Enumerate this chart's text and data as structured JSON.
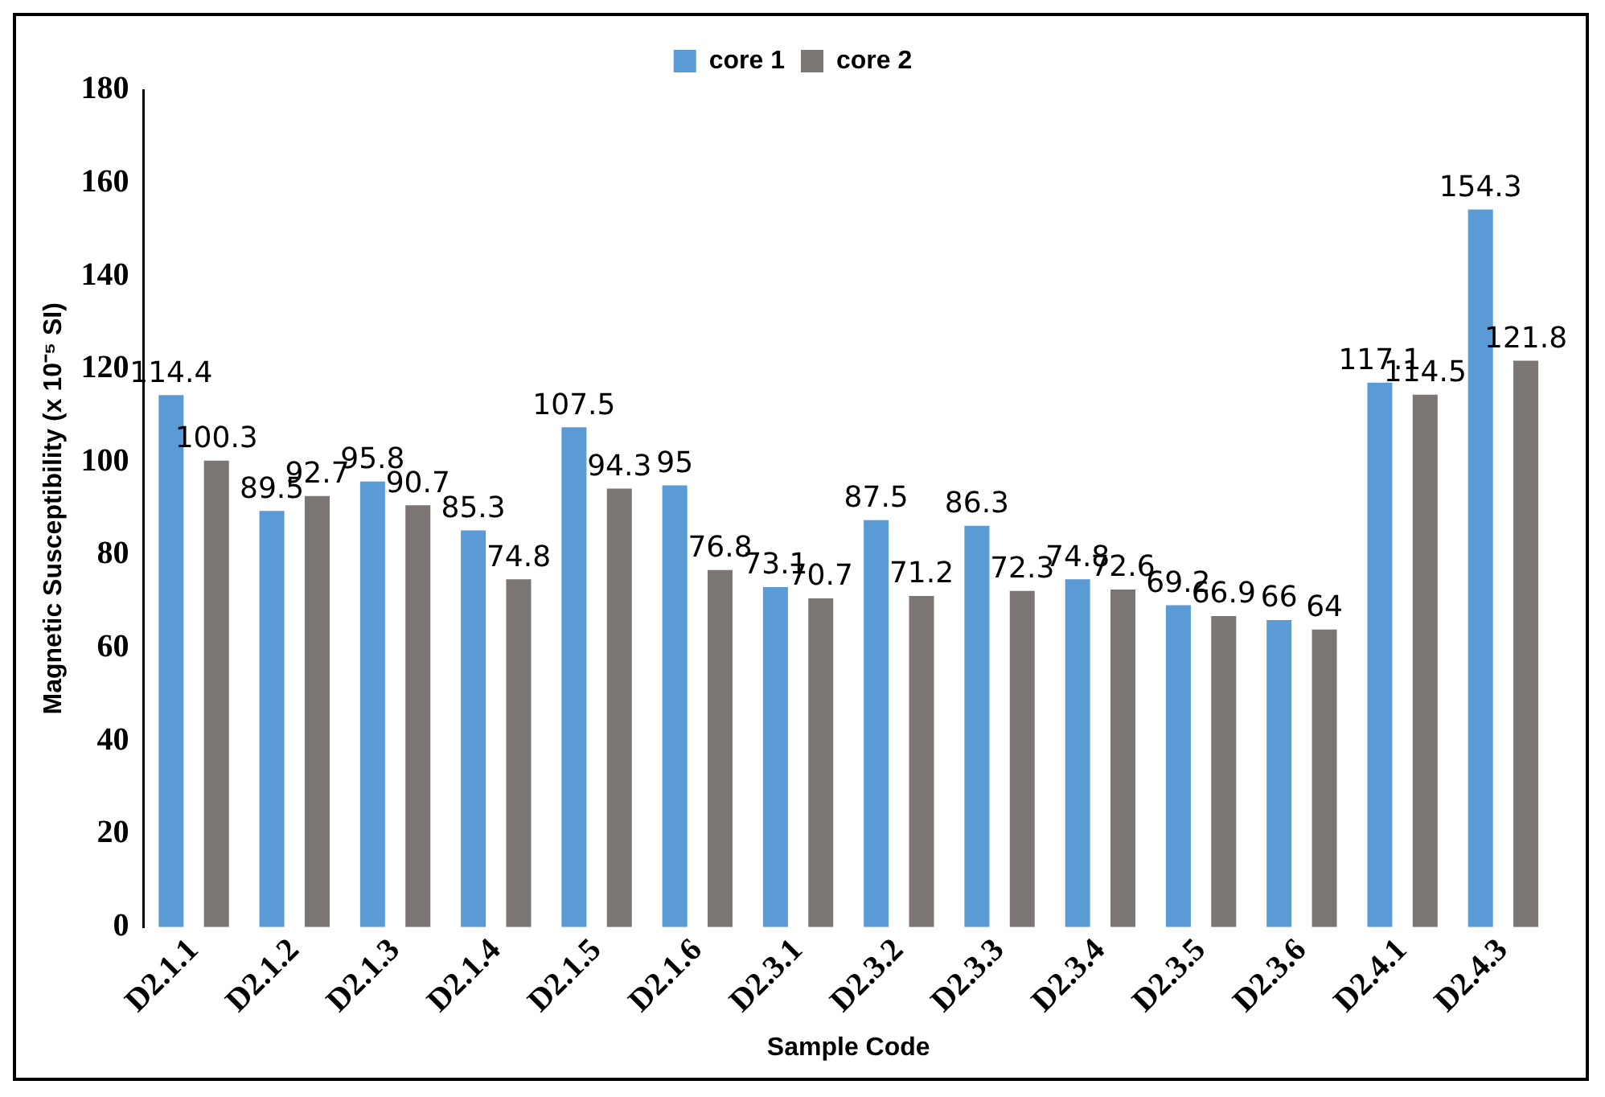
{
  "chart_data": {
    "type": "bar",
    "xlabel": "Sample Code",
    "ylabel": "Magnetic Susceptibility (x 10⁻⁵ SI)",
    "categories": [
      "D2.1.1",
      "D2.1.2",
      "D2.1.3",
      "D2.1.4",
      "D2.1.5",
      "D2.1.6",
      "D2.3.1",
      "D2.3.2",
      "D2.3.3",
      "D2.3.4",
      "D2.3.5",
      "D2.3.6",
      "D2.4.1",
      "D2.4.3"
    ],
    "series": [
      {
        "name": "core 1",
        "color": "#5b9bd5",
        "values": [
          114.4,
          89.5,
          95.8,
          85.3,
          107.5,
          95,
          73.1,
          87.5,
          86.3,
          74.8,
          69.2,
          66,
          117.1,
          154.3
        ]
      },
      {
        "name": "core 2",
        "color": "#7b7574",
        "values": [
          100.3,
          92.7,
          90.7,
          74.8,
          94.3,
          76.8,
          70.7,
          71.2,
          72.3,
          72.6,
          66.9,
          64,
          114.5,
          121.8
        ]
      }
    ],
    "ylim": [
      0,
      180
    ],
    "yticks": [
      0,
      20,
      40,
      60,
      80,
      100,
      120,
      140,
      160,
      180
    ],
    "grid": false,
    "legend": "top",
    "data_labels": true
  }
}
